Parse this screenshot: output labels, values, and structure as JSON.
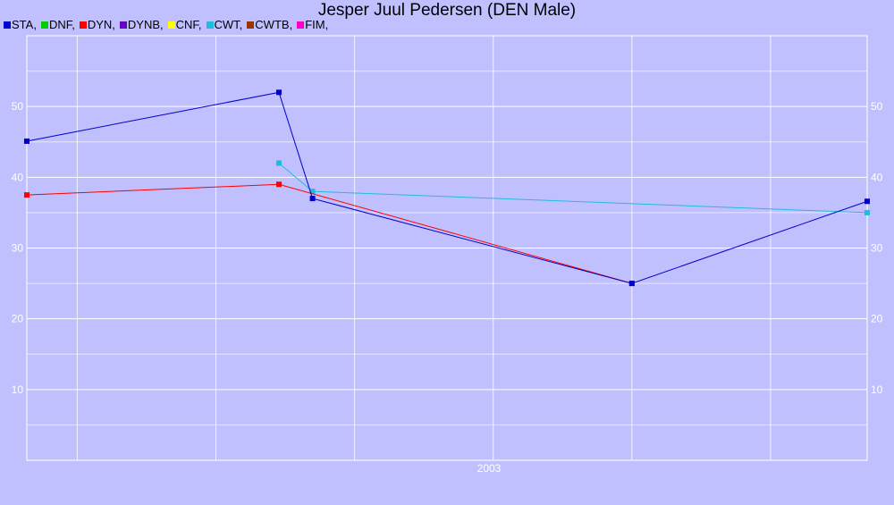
{
  "chart_data": {
    "type": "line",
    "title": "Jesper Juul Pedersen (DEN Male)",
    "xlabel": "",
    "ylabel": "",
    "ylim": [
      0,
      60
    ],
    "yticks": [
      10,
      20,
      30,
      40,
      50
    ],
    "xtick_labels": [
      "2003"
    ],
    "grid": true,
    "legend_position": "top-left",
    "legend": [
      {
        "name": "STA",
        "color": "#0000cc"
      },
      {
        "name": "DNF",
        "color": "#00cc00"
      },
      {
        "name": "DYN",
        "color": "#ff0000"
      },
      {
        "name": "DYNB",
        "color": "#6600cc"
      },
      {
        "name": "CNF",
        "color": "#ffff00"
      },
      {
        "name": "CWT",
        "color": "#22bbdd"
      },
      {
        "name": "CWTB",
        "color": "#993300"
      },
      {
        "name": "FIM",
        "color": "#ff00cc"
      }
    ],
    "series": [
      {
        "name": "STA",
        "color": "#0000cc",
        "points": [
          [
            0.0,
            45.1
          ],
          [
            0.3,
            52.0
          ],
          [
            0.34,
            37.0
          ],
          [
            0.72,
            25.0
          ],
          [
            1.0,
            36.6
          ]
        ]
      },
      {
        "name": "DYN",
        "color": "#ff0000",
        "points": [
          [
            0.0,
            37.5
          ],
          [
            0.3,
            39.0
          ],
          [
            0.72,
            25.0
          ]
        ]
      },
      {
        "name": "CWT",
        "color": "#22bbdd",
        "points": [
          [
            0.3,
            42.0
          ],
          [
            0.34,
            38.0
          ],
          [
            1.0,
            35.0
          ]
        ]
      }
    ]
  }
}
